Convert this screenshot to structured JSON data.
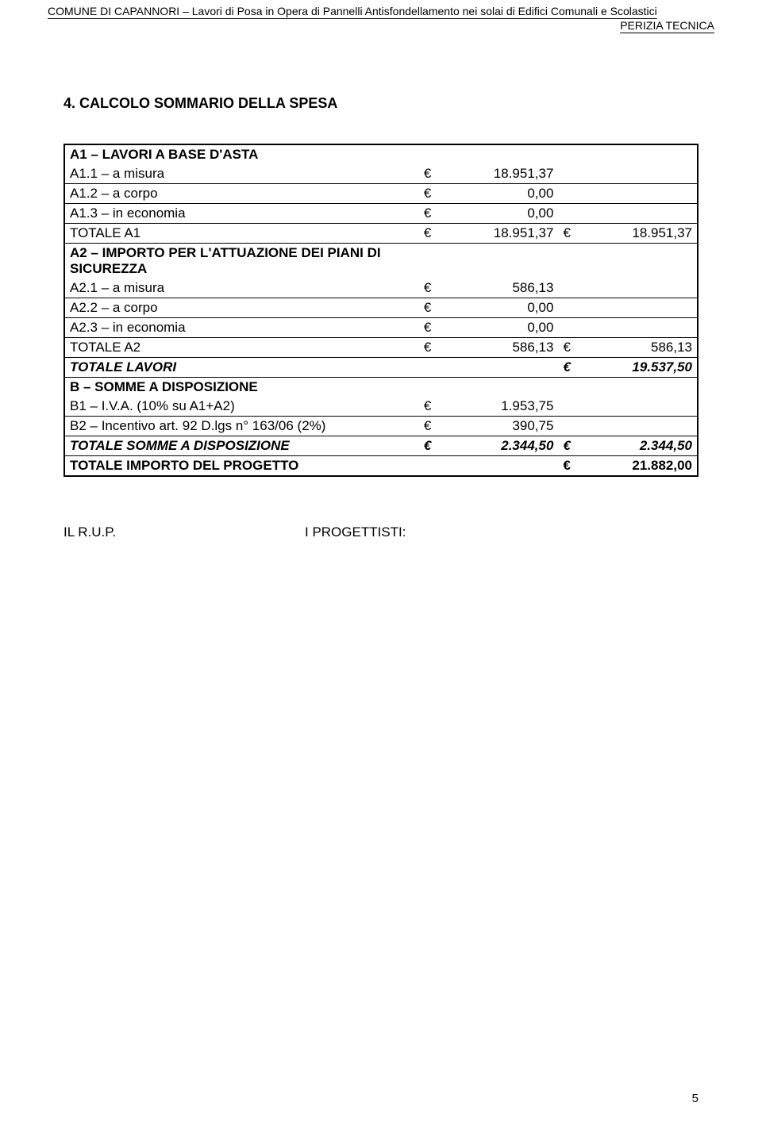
{
  "header": {
    "line1": "COMUNE DI CAPANNORI – Lavori di Posa in Opera di Pannelli Antisfondellamento nei solai di Edifici Comunali e Scolastici",
    "line2": "PERIZIA TECNICA"
  },
  "section_title": "4.   CALCOLO SOMMARIO DELLA SPESA",
  "currency": "€",
  "rows": [
    {
      "desc": "A1 – LAVORI A BASE D'ASTA",
      "bold": true,
      "italic": false,
      "val1": "",
      "val2": "",
      "underline": false,
      "show_cur1": false,
      "show_cur2": false
    },
    {
      "desc": "A1.1 – a misura",
      "bold": false,
      "italic": false,
      "val1": "18.951,37",
      "val2": "",
      "underline": true,
      "show_cur1": true,
      "show_cur2": false
    },
    {
      "desc": "A1.2 – a corpo",
      "bold": false,
      "italic": false,
      "val1": "0,00",
      "val2": "",
      "underline": true,
      "show_cur1": true,
      "show_cur2": false
    },
    {
      "desc": "A1.3 – in economia",
      "bold": false,
      "italic": false,
      "val1": "0,00",
      "val2": "",
      "underline": true,
      "show_cur1": true,
      "show_cur2": false
    },
    {
      "desc": "TOTALE A1",
      "bold": false,
      "italic": false,
      "val1": "18.951,37",
      "val2": "18.951,37",
      "underline": true,
      "show_cur1": true,
      "show_cur2": true
    },
    {
      "desc": "A2 – IMPORTO PER L'ATTUAZIONE DEI PIANI DI SICUREZZA",
      "bold": true,
      "italic": false,
      "val1": "",
      "val2": "",
      "underline": false,
      "show_cur1": false,
      "show_cur2": false
    },
    {
      "desc": "A2.1 – a misura",
      "bold": false,
      "italic": false,
      "val1": "586,13",
      "val2": "",
      "underline": true,
      "show_cur1": true,
      "show_cur2": false
    },
    {
      "desc": "A2.2 – a corpo",
      "bold": false,
      "italic": false,
      "val1": "0,00",
      "val2": "",
      "underline": true,
      "show_cur1": true,
      "show_cur2": false
    },
    {
      "desc": "A2.3 – in economia",
      "bold": false,
      "italic": false,
      "val1": "0,00",
      "val2": "",
      "underline": true,
      "show_cur1": true,
      "show_cur2": false
    },
    {
      "desc": "TOTALE A2",
      "bold": false,
      "italic": false,
      "val1": "586,13",
      "val2": "586,13",
      "underline": true,
      "show_cur1": true,
      "show_cur2": true
    },
    {
      "desc": "TOTALE LAVORI",
      "bold": true,
      "italic": true,
      "val1": "",
      "val2": "19.537,50",
      "underline": true,
      "show_cur1": false,
      "show_cur2": true
    },
    {
      "desc": "B – SOMME A DISPOSIZIONE",
      "bold": true,
      "italic": false,
      "val1": "",
      "val2": "",
      "underline": false,
      "show_cur1": false,
      "show_cur2": false
    },
    {
      "desc": "B1 – I.V.A. (10% su A1+A2)",
      "bold": false,
      "italic": false,
      "val1": "1.953,75",
      "val2": "",
      "underline": true,
      "show_cur1": true,
      "show_cur2": false
    },
    {
      "desc": "B2 – Incentivo art. 92 D.lgs n° 163/06 (2%)",
      "bold": false,
      "italic": false,
      "val1": "390,75",
      "val2": "",
      "underline": true,
      "show_cur1": true,
      "show_cur2": false
    },
    {
      "desc": "TOTALE SOMME A DISPOSIZIONE",
      "bold": true,
      "italic": true,
      "val1": "2.344,50",
      "val2": "2.344,50",
      "underline": true,
      "show_cur1": true,
      "show_cur2": true
    },
    {
      "desc": "TOTALE IMPORTO DEL PROGETTO",
      "bold": true,
      "italic": false,
      "val1": "",
      "val2": "21.882,00",
      "underline": false,
      "show_cur1": false,
      "show_cur2": true
    }
  ],
  "footer": {
    "left": "IL R.U.P.",
    "right": "I PROGETTISTI:"
  },
  "page_number": "5",
  "colors": {
    "text": "#000000",
    "background": "#ffffff",
    "border": "#000000"
  },
  "typography": {
    "base_fontsize": 17,
    "header_fontsize": 14,
    "title_fontsize": 18
  }
}
